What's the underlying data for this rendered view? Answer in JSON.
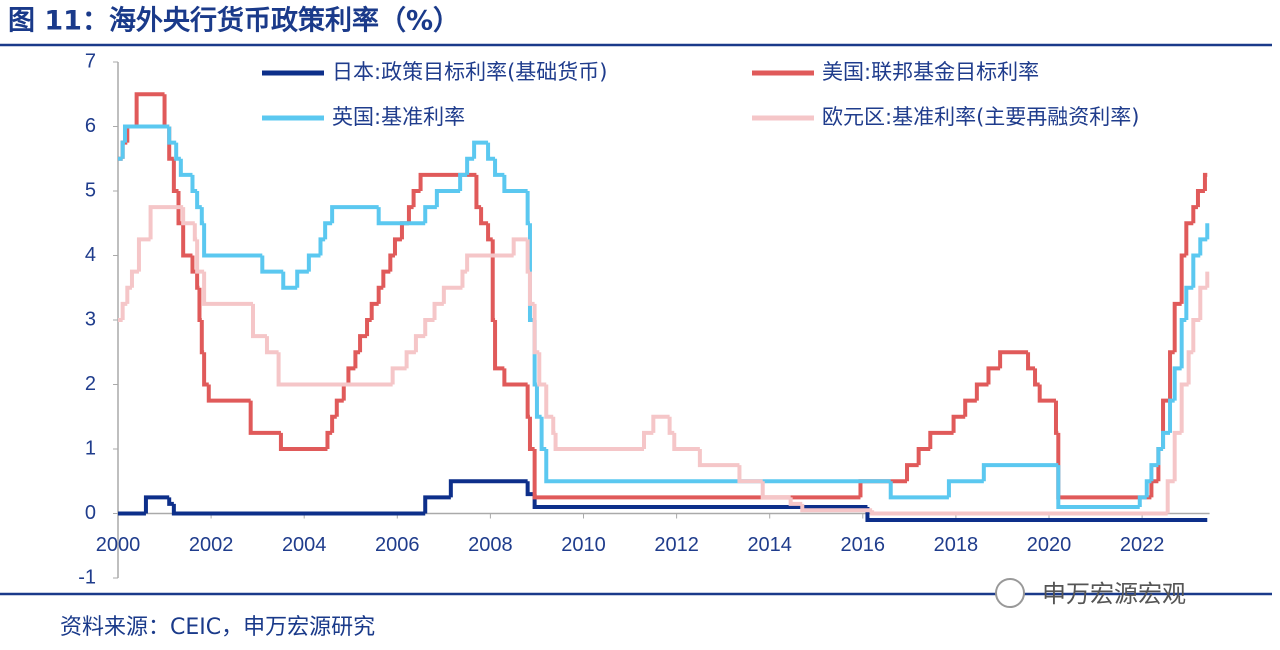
{
  "chart_data": {
    "type": "step-line",
    "title": "图 11：海外央行货币政策利率（%）",
    "source": "资料来源：CEIC，申万宏源研究",
    "watermark": "申万宏源宏观",
    "xlim": [
      2000,
      2023.5
    ],
    "xticks": [
      2000,
      2002,
      2004,
      2006,
      2008,
      2010,
      2012,
      2014,
      2016,
      2018,
      2020,
      2022
    ],
    "ylim": [
      -1,
      7
    ],
    "yticks": [
      -1,
      0,
      1,
      2,
      3,
      4,
      5,
      6,
      7
    ],
    "series": [
      {
        "name": "日本:政策目标利率(基础货币)",
        "color": "#0d2f8a",
        "x": [
          2000,
          2000.6,
          2001.1,
          2001.2,
          2006.6,
          2007.15,
          2008.8,
          2008.95,
          2016.1,
          2023.4
        ],
        "values": [
          0,
          0.25,
          0.15,
          0,
          0.25,
          0.5,
          0.3,
          0.1,
          -0.1,
          -0.1
        ]
      },
      {
        "name": "美国:联邦基金目标利率",
        "color": "#e05a5a",
        "x": [
          2000,
          2000.1,
          2000.2,
          2000.4,
          2001.0,
          2001.1,
          2001.2,
          2001.3,
          2001.4,
          2001.6,
          2001.7,
          2001.75,
          2001.8,
          2001.85,
          2001.95,
          2002.85,
          2003.5,
          2004.5,
          2004.6,
          2004.7,
          2004.85,
          2004.95,
          2005.1,
          2005.2,
          2005.35,
          2005.45,
          2005.6,
          2005.7,
          2005.85,
          2005.95,
          2006.1,
          2006.25,
          2006.35,
          2006.5,
          2007.7,
          2007.8,
          2007.95,
          2008.05,
          2008.1,
          2008.3,
          2008.8,
          2008.85,
          2008.95,
          2015.95,
          2016.95,
          2017.2,
          2017.45,
          2017.95,
          2018.2,
          2018.45,
          2018.7,
          2018.95,
          2019.55,
          2019.7,
          2019.8,
          2020.15,
          2020.2,
          2022.2,
          2022.35,
          2022.45,
          2022.6,
          2022.7,
          2022.85,
          2022.95,
          2023.1,
          2023.2,
          2023.35,
          2023.4
        ],
        "values": [
          5.5,
          5.75,
          6.0,
          6.5,
          6.0,
          5.5,
          5.0,
          4.5,
          4.0,
          3.75,
          3.5,
          3.0,
          2.5,
          2.0,
          1.75,
          1.25,
          1.0,
          1.25,
          1.5,
          1.75,
          2.0,
          2.25,
          2.5,
          2.75,
          3.0,
          3.25,
          3.5,
          3.75,
          4.0,
          4.25,
          4.5,
          4.75,
          5.0,
          5.25,
          4.75,
          4.5,
          4.25,
          3.0,
          2.25,
          2.0,
          1.5,
          1.0,
          0.25,
          0.5,
          0.75,
          1.0,
          1.25,
          1.5,
          1.75,
          2.0,
          2.25,
          2.5,
          2.25,
          2.0,
          1.75,
          1.25,
          0.25,
          0.5,
          1.0,
          1.75,
          2.5,
          3.25,
          4.0,
          4.5,
          4.75,
          5.0,
          5.25,
          5.25
        ]
      },
      {
        "name": "英国:基准利率",
        "color": "#5bc8f0",
        "x": [
          2000,
          2000.1,
          2000.15,
          2001.1,
          2001.25,
          2001.35,
          2001.6,
          2001.7,
          2001.8,
          2001.85,
          2003.1,
          2003.55,
          2003.85,
          2004.1,
          2004.35,
          2004.45,
          2004.6,
          2005.6,
          2006.6,
          2006.85,
          2007.35,
          2007.5,
          2007.65,
          2007.95,
          2008.1,
          2008.3,
          2008.8,
          2008.85,
          2008.95,
          2009.0,
          2009.1,
          2009.2,
          2016.6,
          2017.85,
          2018.6,
          2020.2,
          2021.95,
          2022.1,
          2022.2,
          2022.35,
          2022.45,
          2022.6,
          2022.7,
          2022.85,
          2022.95,
          2023.1,
          2023.25,
          2023.4
        ],
        "values": [
          5.5,
          5.75,
          6.0,
          5.75,
          5.5,
          5.25,
          5.0,
          4.75,
          4.5,
          4.0,
          3.75,
          3.5,
          3.75,
          4.0,
          4.25,
          4.5,
          4.75,
          4.5,
          4.75,
          5.0,
          5.25,
          5.5,
          5.75,
          5.5,
          5.25,
          5.0,
          4.5,
          3.0,
          2.0,
          1.5,
          1.0,
          0.5,
          0.25,
          0.5,
          0.75,
          0.1,
          0.25,
          0.5,
          0.75,
          1.0,
          1.25,
          1.75,
          2.25,
          3.0,
          3.5,
          4.0,
          4.25,
          4.5
        ]
      },
      {
        "name": "欧元区:基准利率(主要再融资利率)",
        "color": "#f5c6c8",
        "x": [
          2000,
          2000.1,
          2000.2,
          2000.3,
          2000.45,
          2000.7,
          2001.4,
          2001.65,
          2001.7,
          2001.85,
          2002.9,
          2003.2,
          2003.45,
          2005.9,
          2006.2,
          2006.4,
          2006.6,
          2006.8,
          2007.0,
          2007.4,
          2007.5,
          2008.5,
          2008.8,
          2008.85,
          2008.95,
          2009.05,
          2009.2,
          2009.35,
          2009.4,
          2011.3,
          2011.5,
          2011.85,
          2011.95,
          2012.5,
          2013.35,
          2013.85,
          2014.45,
          2014.7,
          2016.2,
          2022.55,
          2022.7,
          2022.85,
          2023.0,
          2023.1,
          2023.25,
          2023.4
        ],
        "values": [
          3.0,
          3.25,
          3.5,
          3.75,
          4.25,
          4.75,
          4.5,
          4.25,
          3.75,
          3.25,
          2.75,
          2.5,
          2.0,
          2.25,
          2.5,
          2.75,
          3.0,
          3.25,
          3.5,
          3.75,
          4.0,
          4.25,
          3.75,
          3.25,
          2.5,
          2.0,
          1.5,
          1.25,
          1.0,
          1.25,
          1.5,
          1.25,
          1.0,
          0.75,
          0.5,
          0.25,
          0.15,
          0.05,
          0,
          0.5,
          1.25,
          2.0,
          2.5,
          3.0,
          3.5,
          3.75
        ]
      }
    ]
  }
}
